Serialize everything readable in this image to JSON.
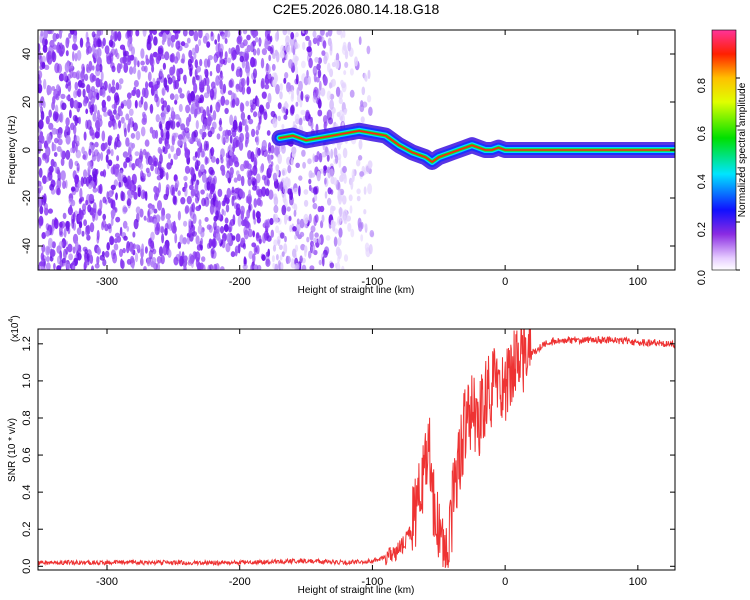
{
  "title": "C2E5.2026.080.14.18.G18",
  "chart_data": [
    {
      "type": "heatmap",
      "name": "spectrogram",
      "xlabel": "Height of straight line (km)",
      "ylabel": "Frequency (Hz)",
      "xlim": [
        -352,
        128
      ],
      "ylim": [
        -50,
        50
      ],
      "xticks": [
        -300,
        -200,
        -100,
        0,
        100
      ],
      "xtick_labels": [
        "-300",
        "-200",
        "-100",
        "0",
        "100"
      ],
      "yticks": [
        40,
        20,
        0,
        -20,
        -40
      ],
      "ytick_labels": [
        "40",
        "20",
        "0",
        "-20",
        "-40"
      ],
      "ridge": {
        "name": "signal ridge (frequency vs height)",
        "x": [
          -170,
          -160,
          -150,
          -140,
          -130,
          -120,
          -110,
          -100,
          -90,
          -80,
          -70,
          -60,
          -55,
          -50,
          -45,
          -40,
          -35,
          -30,
          -25,
          -20,
          -15,
          -10,
          -5,
          0,
          20,
          40,
          60,
          80,
          100,
          120,
          128
        ],
        "y": [
          5,
          6,
          4,
          5,
          6,
          7,
          8,
          7,
          6,
          2,
          -1,
          -3,
          -5,
          -3,
          -2,
          -1,
          0,
          1,
          2,
          1,
          0,
          0,
          1,
          0,
          0,
          0,
          0,
          0,
          0,
          0,
          0
        ]
      },
      "colorbar": {
        "label": "Normalized spectral amplitude",
        "range": [
          0,
          1
        ],
        "ticks": [
          0.0,
          0.2,
          0.4,
          0.6,
          0.8
        ],
        "tick_labels": [
          "0.0",
          "0.2",
          "0.4",
          "0.6",
          "0.8"
        ]
      }
    },
    {
      "type": "line",
      "name": "snr",
      "xlabel": "Height of straight line (km)",
      "ylabel": "SNR (10 * v/v)",
      "scale_label": "(x10",
      "scale_exponent": "4",
      "xlim": [
        -352,
        128
      ],
      "ylim": [
        -0.02,
        1.28
      ],
      "xticks": [
        -300,
        -200,
        -100,
        0,
        100
      ],
      "xtick_labels": [
        "-300",
        "-200",
        "-100",
        "0",
        "100"
      ],
      "yticks": [
        0.0,
        0.2,
        0.4,
        0.6,
        0.8,
        1.0,
        1.2
      ],
      "ytick_labels": [
        "0.0",
        "0.2",
        "0.4",
        "0.6",
        "0.8",
        "1.0",
        "1.2"
      ],
      "color": "#ee3333",
      "series": [
        {
          "name": "SNR",
          "x": [
            -352,
            -300,
            -250,
            -200,
            -150,
            -120,
            -100,
            -90,
            -80,
            -70,
            -65,
            -60,
            -57,
            -55,
            -52,
            -48,
            -45,
            -40,
            -35,
            -30,
            -25,
            -20,
            -15,
            -10,
            -5,
            0,
            5,
            10,
            20,
            30,
            40,
            60,
            80,
            100,
            128
          ],
          "y": [
            0.02,
            0.02,
            0.02,
            0.02,
            0.03,
            0.02,
            0.03,
            0.05,
            0.09,
            0.2,
            0.35,
            0.55,
            0.65,
            0.4,
            0.25,
            0.1,
            0.05,
            0.3,
            0.55,
            0.8,
            0.85,
            0.75,
            0.9,
            0.95,
            1.0,
            1.0,
            1.05,
            1.1,
            1.15,
            1.2,
            1.22,
            1.22,
            1.22,
            1.21,
            1.2
          ]
        }
      ]
    }
  ]
}
